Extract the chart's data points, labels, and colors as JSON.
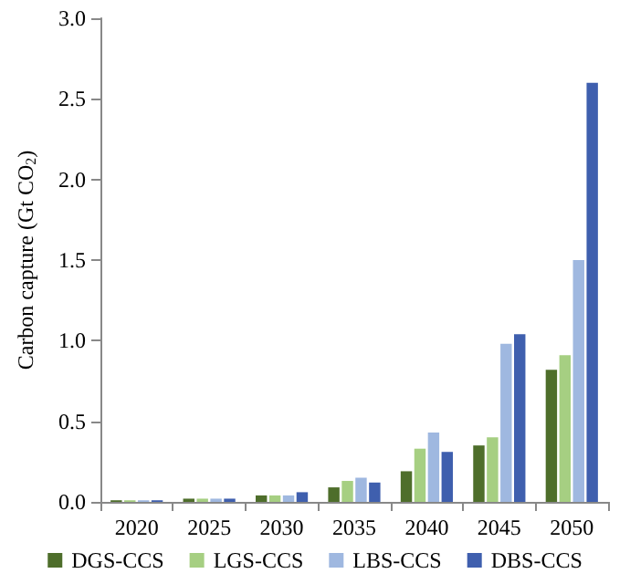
{
  "chart_data": {
    "type": "bar",
    "ylabel": "Carbon capture (Gt CO$_{2}$)",
    "categories": [
      "2020",
      "2025",
      "2030",
      "2035",
      "2040",
      "2045",
      "2050"
    ],
    "series": [
      {
        "name": "DGS-CCS",
        "color": "#4e6e2b",
        "values": [
          0.01,
          0.02,
          0.04,
          0.09,
          0.19,
          0.35,
          0.82
        ]
      },
      {
        "name": "LGS-CCS",
        "color": "#a6cf82",
        "values": [
          0.01,
          0.02,
          0.04,
          0.13,
          0.33,
          0.4,
          0.91
        ]
      },
      {
        "name": "LBS-CCS",
        "color": "#9fb8e0",
        "values": [
          0.01,
          0.02,
          0.04,
          0.15,
          0.43,
          0.98,
          1.5
        ]
      },
      {
        "name": "DBS-CCS",
        "color": "#3f5fae",
        "values": [
          0.01,
          0.02,
          0.06,
          0.12,
          0.31,
          1.04,
          2.6
        ]
      }
    ],
    "ylim": [
      0,
      3
    ],
    "yticks": [
      {
        "value": 0,
        "label": "0.0"
      },
      0.5,
      {
        "value": 1,
        "label": "1.0"
      },
      1.5,
      {
        "value": 2,
        "label": "2.0"
      },
      2.5,
      {
        "value": 3,
        "label": "3.0"
      }
    ],
    "grid": false,
    "legend": "bottom"
  }
}
